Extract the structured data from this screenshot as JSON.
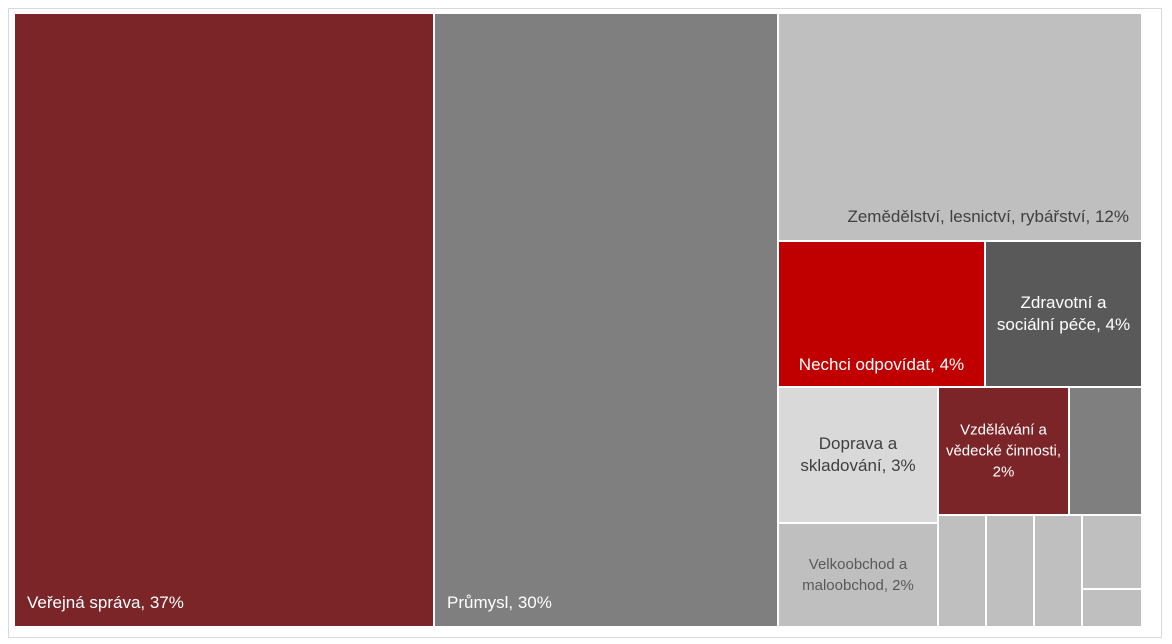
{
  "chart_data": {
    "type": "treemap",
    "items": [
      {
        "label": "Veřejná správa, 37%",
        "name": "Veřejná správa",
        "value": 37,
        "color": "#7b2529",
        "text_color": "#ffffff"
      },
      {
        "label": "Průmysl, 30%",
        "name": "Průmysl",
        "value": 30,
        "color": "#7f7f7f",
        "text_color": "#ffffff"
      },
      {
        "label": "Zemědělství, lesnictví, rybářství, 12%",
        "name": "Zemědělství, lesnictví, rybářství",
        "value": 12,
        "color": "#bfbfbf",
        "text_color": "#404040"
      },
      {
        "label": "Nechci odpovídat, 4%",
        "name": "Nechci odpovídat",
        "value": 4,
        "color": "#c00000",
        "text_color": "#ffffff"
      },
      {
        "label": "Zdravotní a sociální péče, 4%",
        "name": "Zdravotní a sociální péče",
        "value": 4,
        "color": "#595959",
        "text_color": "#ffffff"
      },
      {
        "label": "Doprava a skladování, 3%",
        "name": "Doprava a skladování",
        "value": 3,
        "color": "#d9d9d9",
        "text_color": "#404040"
      },
      {
        "label": "Vzdělávání a vědecké činnosti, 2%",
        "name": "Vzdělávání a vědecké činnosti",
        "value": 2,
        "color": "#7b2529",
        "text_color": "#ffffff"
      },
      {
        "label": "",
        "value": null,
        "color": "#7f7f7f"
      },
      {
        "label": "Velkoobchod a maloobchod, 2%",
        "name": "Velkoobchod a maloobchod",
        "value": 2,
        "color": "#bfbfbf",
        "text_color": "#595959"
      },
      {
        "label": "",
        "value": null,
        "color": "#bfbfbf"
      },
      {
        "label": "",
        "value": null,
        "color": "#bfbfbf"
      },
      {
        "label": "",
        "value": null,
        "color": "#bfbfbf"
      },
      {
        "label": "",
        "value": null,
        "color": "#bfbfbf"
      },
      {
        "label": "",
        "value": null,
        "color": "#bfbfbf"
      }
    ]
  }
}
